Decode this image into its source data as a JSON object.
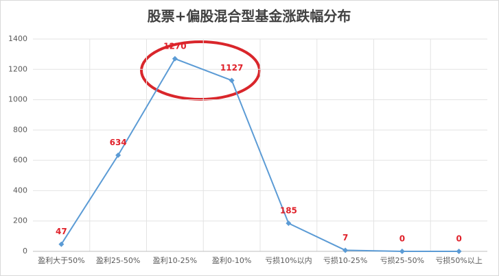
{
  "chart_data": {
    "type": "line",
    "title": "股票+偏股混合型基金涨跌幅分布",
    "categories": [
      "盈利大于50%",
      "盈利25-50%",
      "盈利10-25%",
      "盈利0-10%",
      "亏损10%以内",
      "亏损10-25%",
      "亏损25-50%",
      "亏损50%以上"
    ],
    "values": [
      47,
      634,
      1270,
      1127,
      185,
      7,
      0,
      0
    ],
    "color": "#5b9bd5",
    "label_color": "#e0212a",
    "ylim": [
      0,
      1400
    ],
    "yticks": [
      0,
      200,
      400,
      600,
      800,
      1000,
      1200,
      1400
    ],
    "grid": true
  }
}
